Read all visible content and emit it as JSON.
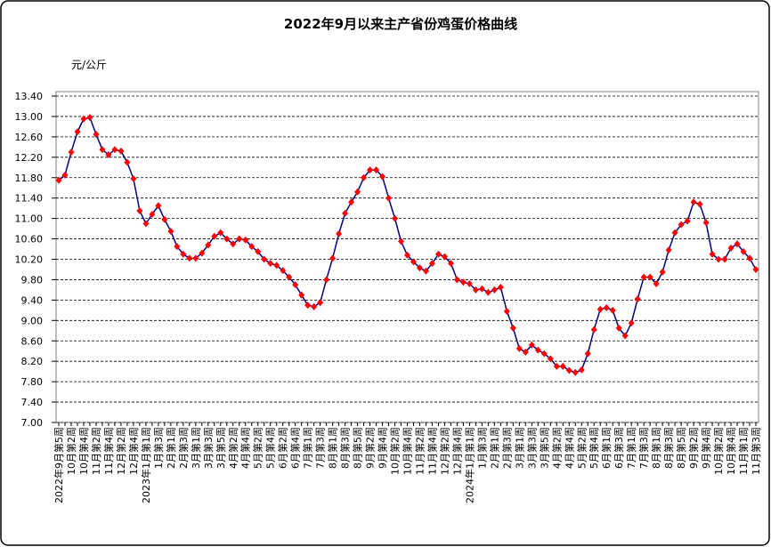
{
  "chart_data": {
    "type": "line",
    "title": "2022年9月以来主产省份鸡蛋价格曲线",
    "y_label": "元/公斤",
    "categories": [
      "2022年9月第5周",
      null,
      "10月第2周",
      null,
      "10月第4周",
      null,
      "11月第2周",
      null,
      "11月第4周",
      null,
      "12月第2周",
      null,
      "12月第4周",
      null,
      "2023年1月第1周",
      null,
      "1月第3周",
      null,
      "2月第1周",
      null,
      "2月第3周",
      null,
      "3月第1周",
      null,
      "3月第3周",
      null,
      "3月第5周",
      null,
      "4月第2周",
      null,
      "4月第4周",
      null,
      "5月第2周",
      null,
      "5月第4周",
      null,
      "6月第2周",
      null,
      "6月第4周",
      null,
      "7月第1周",
      null,
      "7月第3周",
      null,
      "8月第1周",
      null,
      "8月第3周",
      null,
      "8月第5周",
      null,
      "9月第2周",
      null,
      "9月第4周",
      null,
      "10月第2周",
      null,
      "10月第4周",
      null,
      "11月第2周",
      null,
      "11月第4周",
      null,
      "12月第2周",
      null,
      "12月第4周",
      null,
      "2024年1月第1周",
      null,
      "1月第3周",
      null,
      "2月第1周",
      null,
      "2月第3周",
      null,
      "3月第1周",
      null,
      "3月第3周",
      null,
      "3月第5周",
      null,
      "4月第2周",
      null,
      "4月第4周",
      null,
      "5月第2周",
      null,
      "5月第4周",
      null,
      "6月第1周",
      null,
      "6月第3周",
      null,
      "7月第1周",
      null,
      "7月第3周",
      null,
      "8月第1周",
      null,
      "8月第3周",
      null,
      "8月第5周",
      null,
      "9月第2周",
      null,
      "9月第4周",
      null,
      "10月第2周",
      null,
      "10月第4周",
      null,
      "11月第1周",
      null,
      "11月第3周"
    ],
    "series": [
      {
        "name": "鸡蛋价格",
        "color": "#000080",
        "marker_color": "#ff0000",
        "values": [
          11.75,
          11.85,
          12.3,
          12.7,
          12.95,
          12.98,
          12.65,
          12.35,
          12.25,
          12.35,
          12.32,
          12.1,
          11.78,
          11.15,
          10.9,
          11.08,
          11.25,
          10.98,
          10.75,
          10.45,
          10.3,
          10.22,
          10.22,
          10.32,
          10.48,
          10.65,
          10.72,
          10.6,
          10.5,
          10.6,
          10.58,
          10.45,
          10.35,
          10.2,
          10.12,
          10.08,
          9.98,
          9.85,
          9.7,
          9.5,
          9.3,
          9.27,
          9.35,
          9.8,
          10.22,
          10.7,
          11.1,
          11.32,
          11.52,
          11.8,
          11.95,
          11.95,
          11.82,
          11.4,
          11.0,
          10.55,
          10.28,
          10.15,
          10.03,
          9.97,
          10.12,
          10.3,
          10.25,
          10.12,
          9.8,
          9.75,
          9.72,
          9.6,
          9.62,
          9.55,
          9.6,
          9.65,
          9.18,
          8.85,
          8.45,
          8.38,
          8.52,
          8.42,
          8.35,
          8.25,
          8.1,
          8.1,
          8.02,
          7.98,
          8.03,
          8.35,
          8.82,
          9.22,
          9.25,
          9.2,
          8.85,
          8.7,
          8.95,
          9.42,
          9.85,
          9.85,
          9.72,
          9.95,
          10.38,
          10.72,
          10.88,
          10.95,
          11.32,
          11.28,
          10.92,
          10.3,
          10.2,
          10.2,
          10.42,
          10.5,
          10.35,
          10.22,
          10.0
        ]
      }
    ],
    "ylim": [
      7.0,
      13.4
    ],
    "yticks": [
      {
        "value": 7.0,
        "label": "7.00"
      },
      {
        "value": 7.4,
        "label": "7.40"
      },
      {
        "value": 7.8,
        "label": "7.80"
      },
      {
        "value": 8.2,
        "label": "8.20"
      },
      {
        "value": 8.6,
        "label": "8.60"
      },
      {
        "value": 9.0,
        "label": "9.00"
      },
      {
        "value": 9.4,
        "label": "9.40"
      },
      {
        "value": 9.8,
        "label": "9.80"
      },
      {
        "value": 10.2,
        "label": "10.20"
      },
      {
        "value": 10.6,
        "label": "10.60"
      },
      {
        "value": 11.0,
        "label": "11.00"
      },
      {
        "value": 11.4,
        "label": "11.40"
      },
      {
        "value": 11.8,
        "label": "11.80"
      },
      {
        "value": 12.2,
        "label": "12.20"
      },
      {
        "value": 12.6,
        "label": "12.60"
      },
      {
        "value": 13.0,
        "label": "13.00"
      },
      {
        "value": 13.4,
        "label": "13.40"
      }
    ],
    "grid": true
  }
}
